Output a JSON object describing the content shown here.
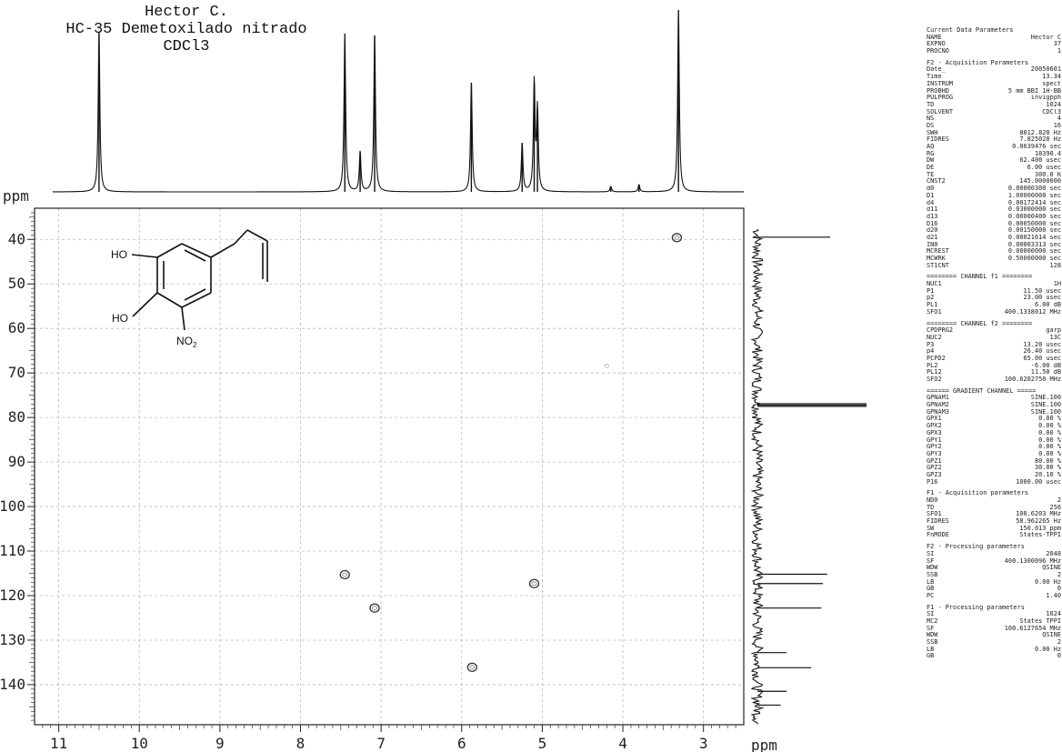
{
  "title_lines": [
    "Hector C.",
    "HC-35 Demetoxilado nitrado",
    "CDCl3"
  ],
  "chart_data": {
    "type": "scatter",
    "subtype": "2D HSQC NMR spectrum",
    "ppm_label": "ppm",
    "x_axis": {
      "label": "ppm",
      "range": [
        11.3,
        2.5
      ],
      "ticks": [
        11,
        10,
        9,
        8,
        7,
        6,
        5,
        4,
        3
      ],
      "grid": true
    },
    "y_axis": {
      "label": "ppm",
      "range": [
        33,
        149
      ],
      "ticks": [
        40,
        50,
        60,
        70,
        80,
        90,
        100,
        110,
        120,
        130,
        140
      ],
      "grid": true
    },
    "cross_peaks": [
      {
        "x": 3.33,
        "y": 39.6
      },
      {
        "x": 7.45,
        "y": 115.3
      },
      {
        "x": 5.1,
        "y": 117.3
      },
      {
        "x": 7.08,
        "y": 122.8
      },
      {
        "x": 5.87,
        "y": 136.1
      },
      {
        "x": 4.2,
        "y": 68.4
      }
    ],
    "proton_projection_peaks": [
      {
        "ppm": 10.5,
        "height": 0.88
      },
      {
        "ppm": 7.45,
        "height": 0.87
      },
      {
        "ppm": 7.26,
        "height": 0.22
      },
      {
        "ppm": 7.08,
        "height": 0.86
      },
      {
        "ppm": 5.88,
        "height": 0.6
      },
      {
        "ppm": 5.25,
        "height": 0.27
      },
      {
        "ppm": 5.1,
        "height": 0.6
      },
      {
        "ppm": 5.06,
        "height": 0.45
      },
      {
        "ppm": 4.15,
        "height": 0.03
      },
      {
        "ppm": 3.8,
        "height": 0.04
      },
      {
        "ppm": 3.31,
        "height": 1.0
      }
    ],
    "carbon_projection_peaks": [
      {
        "ppm": 39.5,
        "height": 0.5
      },
      {
        "ppm": 76.9,
        "height": 0.75
      },
      {
        "ppm": 77.2,
        "height": 0.75
      },
      {
        "ppm": 77.5,
        "height": 0.75
      },
      {
        "ppm": 115.2,
        "height": 0.48
      },
      {
        "ppm": 117.3,
        "height": 0.45
      },
      {
        "ppm": 122.8,
        "height": 0.44
      },
      {
        "ppm": 132.8,
        "height": 0.2
      },
      {
        "ppm": 136.2,
        "height": 0.37
      },
      {
        "ppm": 141.5,
        "height": 0.2
      },
      {
        "ppm": 144.6,
        "height": 0.16
      }
    ]
  },
  "molecule": {
    "oh_top": "HO",
    "oh_bottom": "HO",
    "nitro": "NO",
    "nitro_sub": "2"
  },
  "params": [
    {
      "h": "Current Data Parameters"
    },
    {
      "k": "NAME",
      "v": "Hector C"
    },
    {
      "k": "EXPNO",
      "v": "37"
    },
    {
      "k": "PROCNO",
      "v": "1"
    },
    {
      "gap": true
    },
    {
      "h": "F2 - Acquisition Parameters"
    },
    {
      "k": "Date_",
      "v": "20050601"
    },
    {
      "k": "Time",
      "v": "13.34"
    },
    {
      "k": "INSTRUM",
      "v": "spect"
    },
    {
      "k": "PROBHD",
      "v": "5 mm BBI 1H-BB"
    },
    {
      "k": "PULPROG",
      "v": "invigpph"
    },
    {
      "k": "TD",
      "v": "1024"
    },
    {
      "k": "SOLVENT",
      "v": "CDCl3"
    },
    {
      "k": "NS",
      "v": "4"
    },
    {
      "k": "DS",
      "v": "16"
    },
    {
      "k": "SWH",
      "v": "8012.820 Hz"
    },
    {
      "k": "FIDRES",
      "v": "7.825020 Hz"
    },
    {
      "k": "AQ",
      "v": "0.0639476 sec"
    },
    {
      "k": "RG",
      "v": "18390.4"
    },
    {
      "k": "DW",
      "v": "62.400 usec"
    },
    {
      "k": "DE",
      "v": "6.00 usec"
    },
    {
      "k": "TE",
      "v": "300.0 K"
    },
    {
      "k": "CNST2",
      "v": "145.0000000"
    },
    {
      "k": "d0",
      "v": "0.00000300 sec"
    },
    {
      "k": "D1",
      "v": "1.00000000 sec"
    },
    {
      "k": "d4",
      "v": "0.00172414 sec"
    },
    {
      "k": "d11",
      "v": "0.03000000 sec"
    },
    {
      "k": "d13",
      "v": "0.00000400 sec"
    },
    {
      "k": "D16",
      "v": "0.00050000 sec"
    },
    {
      "k": "d20",
      "v": "0.00150000 sec"
    },
    {
      "k": "d21",
      "v": "0.00021614 sec"
    },
    {
      "k": "IN0",
      "v": "0.00003313 sec"
    },
    {
      "k": "MCREST",
      "v": "0.00000000 sec"
    },
    {
      "k": "MCWRK",
      "v": "0.50000000 sec"
    },
    {
      "k": "ST1CNT",
      "v": "128"
    },
    {
      "gap": true
    },
    {
      "h": "======== CHANNEL f1 ========"
    },
    {
      "k": "NUC1",
      "v": "1H"
    },
    {
      "k": "P1",
      "v": "11.50 usec"
    },
    {
      "k": "p2",
      "v": "23.00 usec"
    },
    {
      "k": "PL1",
      "v": "6.00 dB"
    },
    {
      "k": "SFO1",
      "v": "400.1338012 MHz"
    },
    {
      "gap": true
    },
    {
      "h": "======== CHANNEL f2 ========"
    },
    {
      "k": "CPDPRG2",
      "v": "garp"
    },
    {
      "k": "NUC2",
      "v": "13C"
    },
    {
      "k": "P3",
      "v": "13.20 usec"
    },
    {
      "k": "p4",
      "v": "26.40 usec"
    },
    {
      "k": "PCPD2",
      "v": "65.00 usec"
    },
    {
      "k": "PL2",
      "v": "-6.00 dB"
    },
    {
      "k": "PL12",
      "v": "11.50 dB"
    },
    {
      "k": "SFO2",
      "v": "100.6202750 MHz"
    },
    {
      "gap": true
    },
    {
      "h": "====== GRADIENT CHANNEL ====="
    },
    {
      "k": "GPNAM1",
      "v": "SINE.100"
    },
    {
      "k": "GPNAM2",
      "v": "SINE.100"
    },
    {
      "k": "GPNAM3",
      "v": "SINE.100"
    },
    {
      "k": "GPX1",
      "v": "0.00 %"
    },
    {
      "k": "GPX2",
      "v": "0.00 %"
    },
    {
      "k": "GPX3",
      "v": "0.00 %"
    },
    {
      "k": "GPY1",
      "v": "0.00 %"
    },
    {
      "k": "GPY2",
      "v": "0.00 %"
    },
    {
      "k": "GPY3",
      "v": "0.00 %"
    },
    {
      "k": "GPZ1",
      "v": "80.00 %"
    },
    {
      "k": "GPZ2",
      "v": "30.00 %"
    },
    {
      "k": "GPZ3",
      "v": "20.10 %"
    },
    {
      "k": "P16",
      "v": "1000.00 usec"
    },
    {
      "gap": true
    },
    {
      "h": "F1 - Acquisition parameters"
    },
    {
      "k": "ND0",
      "v": "2"
    },
    {
      "k": "TD",
      "v": "256"
    },
    {
      "k": "SFO1",
      "v": "100.6203 MHz"
    },
    {
      "k": "FIDRES",
      "v": "58.962265 Hz"
    },
    {
      "k": "SW",
      "v": "150.013 ppm"
    },
    {
      "k": "FnMODE",
      "v": "States-TPPI"
    },
    {
      "gap": true
    },
    {
      "h": "F2 - Processing parameters"
    },
    {
      "k": "SI",
      "v": "2048"
    },
    {
      "k": "SF",
      "v": "400.1300096 MHz"
    },
    {
      "k": "WDW",
      "v": "QSINE"
    },
    {
      "k": "SSB",
      "v": "2"
    },
    {
      "k": "LB",
      "v": "0.00 Hz"
    },
    {
      "k": "GB",
      "v": "0"
    },
    {
      "k": "PC",
      "v": "1.40"
    },
    {
      "gap": true
    },
    {
      "h": "F1 - Processing parameters"
    },
    {
      "k": "SI",
      "v": "1024"
    },
    {
      "k": "MC2",
      "v": "States TPPI"
    },
    {
      "k": "SF",
      "v": "100.6127654 MHz"
    },
    {
      "k": "WDW",
      "v": "QSINE"
    },
    {
      "k": "SSB",
      "v": "2"
    },
    {
      "k": "LB",
      "v": "0.00 Hz"
    },
    {
      "k": "GB",
      "v": "0"
    }
  ]
}
